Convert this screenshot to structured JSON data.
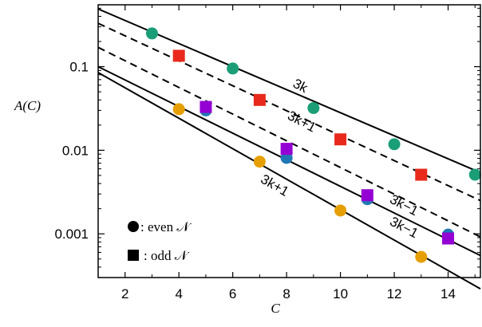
{
  "chart_data": {
    "type": "scatter",
    "xlabel": "C",
    "ylabel": "A(C)",
    "xlim": [
      1,
      15.2
    ],
    "ylim": [
      0.0003,
      0.55
    ],
    "yscale": "log",
    "xticks": [
      2,
      4,
      6,
      8,
      10,
      12,
      14
    ],
    "xtick_labels": [
      "2",
      "4",
      "6",
      "8",
      "10",
      "12",
      "14"
    ],
    "yticks": [
      0.001,
      0.01,
      0.1
    ],
    "ytick_labels": [
      "0.001",
      "0.01",
      "0.1"
    ],
    "grid": false,
    "lines": [
      {
        "label": "3k",
        "style": "solid",
        "x": [
          1,
          15.2
        ],
        "y": [
          0.49,
          0.0054
        ],
        "label_at": {
          "x": 8.2,
          "y": 0.058
        },
        "angle": 27
      },
      {
        "label": "3k+1",
        "style": "dashed",
        "x": [
          1,
          15.2
        ],
        "y": [
          0.33,
          0.0025
        ],
        "label_at": {
          "x": 8.0,
          "y": 0.024
        },
        "angle": 28
      },
      {
        "label": "3k−1",
        "style": "dashed",
        "x": [
          1,
          15.2
        ],
        "y": [
          0.17,
          0.00092
        ],
        "label_at": {
          "x": 11.8,
          "y": 0.0024
        },
        "angle": 28
      },
      {
        "label": "3k−1",
        "style": "solid",
        "x": [
          1,
          15.2
        ],
        "y": [
          0.1,
          0.00055
        ],
        "label_at": {
          "x": 11.8,
          "y": 0.0013
        },
        "angle": 28
      },
      {
        "label": "3k+1",
        "style": "solid",
        "x": [
          1,
          15.2
        ],
        "y": [
          0.085,
          0.00022
        ],
        "label_at": {
          "x": 7.0,
          "y": 0.0042
        },
        "angle": 30
      }
    ],
    "series": [
      {
        "marker": "circle",
        "color": "#1b9e77",
        "x": [
          3,
          6,
          9,
          12,
          15
        ],
        "y": [
          0.25,
          0.095,
          0.032,
          0.0118,
          0.0051
        ]
      },
      {
        "marker": "circle",
        "color": "#e69f00",
        "x": [
          4,
          7,
          10,
          13
        ],
        "y": [
          0.031,
          0.0073,
          0.0019,
          0.00053
        ]
      },
      {
        "marker": "circle",
        "color": "#1f78b4",
        "x": [
          5,
          8,
          11,
          14
        ],
        "y": [
          0.03,
          0.0081,
          0.0026,
          0.00098
        ]
      },
      {
        "marker": "square",
        "color": "#e8291c",
        "x": [
          4,
          7,
          10,
          13
        ],
        "y": [
          0.135,
          0.04,
          0.0135,
          0.0051
        ]
      },
      {
        "marker": "square",
        "color": "#9400d3",
        "x": [
          5,
          8,
          11,
          14
        ],
        "y": [
          0.033,
          0.0104,
          0.0029,
          0.00088
        ]
      }
    ],
    "legend": {
      "placement": "bottom-left",
      "entries": [
        {
          "marker": "circle",
          "text": ": even 𝒩"
        },
        {
          "marker": "square",
          "text": ": odd 𝒩"
        }
      ]
    }
  }
}
